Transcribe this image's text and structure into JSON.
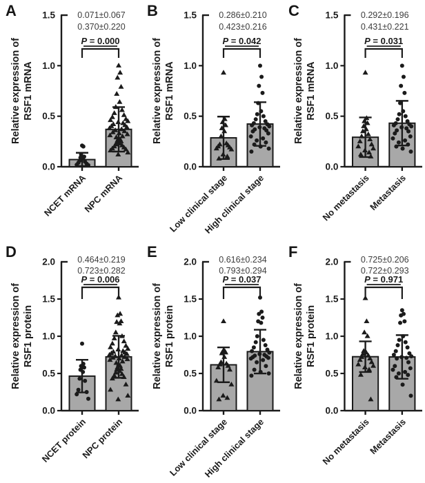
{
  "figure": {
    "background": "#ffffff",
    "bar_fill": "#a8a8a8",
    "ink": "#1b1b1b",
    "stats_text_color": "#3d3d3d"
  },
  "chart_data": [
    {
      "type": "bar",
      "panel": "A",
      "title": "",
      "ylabel": [
        "Relative expression of",
        "RSF1 mRNA"
      ],
      "ylim": [
        0,
        1.5
      ],
      "yticks": [
        "0.0",
        "0.5",
        "1.0",
        "1.5"
      ],
      "stats_lines": [
        "0.071±0.067",
        "0.370±0.220"
      ],
      "p_label": "P = 0.000",
      "categories": [
        "NCET mRNA",
        "NPC mRNA"
      ],
      "bar_means": [
        0.071,
        0.37
      ],
      "bar_sds": [
        0.067,
        0.22
      ],
      "markers": [
        "circle",
        "triangle"
      ],
      "points": [
        [
          0.21,
          0.2,
          0.12,
          0.1,
          0.09,
          0.08,
          0.06,
          0.05,
          0.04,
          0.03,
          0.02,
          0.015
        ],
        [
          1.0,
          0.93,
          0.88,
          0.79,
          0.72,
          0.64,
          0.59,
          0.56,
          0.53,
          0.51,
          0.49,
          0.47,
          0.46,
          0.45,
          0.44,
          0.43,
          0.42,
          0.41,
          0.4,
          0.39,
          0.38,
          0.37,
          0.36,
          0.35,
          0.34,
          0.33,
          0.32,
          0.31,
          0.3,
          0.29,
          0.28,
          0.27,
          0.26,
          0.25,
          0.24,
          0.23,
          0.22,
          0.21,
          0.2,
          0.19,
          0.18,
          0.17,
          0.16,
          0.14,
          0.12
        ]
      ]
    },
    {
      "type": "bar",
      "panel": "B",
      "title": "",
      "ylabel": [
        "Relative expression of",
        "RSF1 mRNA"
      ],
      "ylim": [
        0,
        1.5
      ],
      "yticks": [
        "0.0",
        "0.5",
        "1.0",
        "1.5"
      ],
      "stats_lines": [
        "0.286±0.210",
        "0.423±0.216"
      ],
      "p_label": "P = 0.042",
      "categories": [
        "Low clinical stage",
        "High clinical stage"
      ],
      "bar_means": [
        0.286,
        0.423
      ],
      "bar_sds": [
        0.21,
        0.216
      ],
      "markers": [
        "triangle",
        "circle"
      ],
      "points": [
        [
          0.93,
          0.47,
          0.44,
          0.41,
          0.38,
          0.35,
          0.3,
          0.23,
          0.22,
          0.21,
          0.2,
          0.19,
          0.18,
          0.17,
          0.12,
          0.1,
          0.08
        ],
        [
          1.0,
          0.89,
          0.8,
          0.73,
          0.63,
          0.55,
          0.52,
          0.5,
          0.47,
          0.45,
          0.43,
          0.42,
          0.41,
          0.4,
          0.39,
          0.38,
          0.37,
          0.36,
          0.35,
          0.33,
          0.3,
          0.28,
          0.26,
          0.24,
          0.22,
          0.2,
          0.18,
          0.15
        ]
      ]
    },
    {
      "type": "bar",
      "panel": "C",
      "title": "",
      "ylabel": [
        "Relative expression of",
        "RSF1 mRNA"
      ],
      "ylim": [
        0,
        1.5
      ],
      "yticks": [
        "0.0",
        "0.5",
        "1.0",
        "1.5"
      ],
      "stats_lines": [
        "0.292±0.196",
        "0.431±0.221"
      ],
      "p_label": "P = 0.031",
      "categories": [
        "No metastasis",
        "Metastasis"
      ],
      "bar_means": [
        0.292,
        0.431
      ],
      "bar_sds": [
        0.196,
        0.221
      ],
      "markers": [
        "triangle",
        "circle"
      ],
      "points": [
        [
          0.93,
          0.48,
          0.45,
          0.43,
          0.4,
          0.37,
          0.35,
          0.32,
          0.3,
          0.27,
          0.25,
          0.22,
          0.2,
          0.18,
          0.16,
          0.14,
          0.12,
          0.1
        ],
        [
          1.0,
          0.89,
          0.8,
          0.73,
          0.63,
          0.55,
          0.52,
          0.5,
          0.47,
          0.45,
          0.43,
          0.42,
          0.41,
          0.4,
          0.39,
          0.38,
          0.36,
          0.35,
          0.33,
          0.3,
          0.28,
          0.26,
          0.24,
          0.22,
          0.2,
          0.18,
          0.15
        ]
      ]
    },
    {
      "type": "bar",
      "panel": "D",
      "title": "",
      "ylabel": [
        "Relative expression of",
        "RSF1 protein"
      ],
      "ylim": [
        0,
        2.0
      ],
      "yticks": [
        "0.0",
        "0.5",
        "1.0",
        "1.5",
        "2.0"
      ],
      "stats_lines": [
        "0.464±0.219",
        "0.723±0.282"
      ],
      "p_label": "P = 0.006",
      "categories": [
        "NCET protein",
        "NPC protein"
      ],
      "bar_means": [
        0.464,
        0.723
      ],
      "bar_sds": [
        0.219,
        0.282
      ],
      "markers": [
        "circle",
        "triangle"
      ],
      "points": [
        [
          0.9,
          0.63,
          0.6,
          0.58,
          0.55,
          0.52,
          0.43,
          0.4,
          0.28,
          0.25,
          0.22,
          0.16
        ],
        [
          1.52,
          1.3,
          1.28,
          1.2,
          1.19,
          1.17,
          1.05,
          1.0,
          0.97,
          0.93,
          0.9,
          0.87,
          0.85,
          0.83,
          0.82,
          0.8,
          0.79,
          0.78,
          0.77,
          0.76,
          0.75,
          0.74,
          0.73,
          0.72,
          0.71,
          0.7,
          0.69,
          0.68,
          0.66,
          0.64,
          0.62,
          0.6,
          0.58,
          0.56,
          0.55,
          0.53,
          0.51,
          0.49,
          0.47,
          0.45,
          0.43,
          0.35,
          0.28,
          0.2,
          0.15
        ]
      ]
    },
    {
      "type": "bar",
      "panel": "E",
      "title": "",
      "ylabel": [
        "Relative expression of",
        "RSF1 protein"
      ],
      "ylim": [
        0,
        2.0
      ],
      "yticks": [
        "0.0",
        "0.5",
        "1.0",
        "1.5",
        "2.0"
      ],
      "stats_lines": [
        "0.616±0.234",
        "0.793±0.294"
      ],
      "p_label": "P = 0.037",
      "categories": [
        "Low clinical stage",
        "High clinical stage"
      ],
      "bar_means": [
        0.616,
        0.793
      ],
      "bar_sds": [
        0.234,
        0.294
      ],
      "markers": [
        "triangle",
        "circle"
      ],
      "points": [
        [
          1.2,
          0.8,
          0.79,
          0.78,
          0.77,
          0.72,
          0.65,
          0.63,
          0.62,
          0.6,
          0.58,
          0.55,
          0.4,
          0.35,
          0.2,
          0.17,
          0.15
        ],
        [
          1.52,
          1.33,
          1.3,
          1.25,
          1.2,
          1.18,
          1.0,
          0.95,
          0.92,
          0.88,
          0.85,
          0.82,
          0.8,
          0.78,
          0.76,
          0.75,
          0.74,
          0.73,
          0.72,
          0.71,
          0.7,
          0.68,
          0.65,
          0.6,
          0.55,
          0.52,
          0.5,
          0.47
        ]
      ]
    },
    {
      "type": "bar",
      "panel": "F",
      "title": "",
      "ylabel": [
        "Relative expression of",
        "RSF1 protein"
      ],
      "ylim": [
        0,
        2.0
      ],
      "yticks": [
        "0.0",
        "0.5",
        "1.0",
        "1.5",
        "2.0"
      ],
      "stats_lines": [
        "0.725±0.206",
        "0.722±0.293"
      ],
      "p_label": "P = 0.971",
      "categories": [
        "No metastasis",
        "Metastasis"
      ],
      "bar_means": [
        0.725,
        0.722
      ],
      "bar_sds": [
        0.206,
        0.293
      ],
      "markers": [
        "triangle",
        "circle"
      ],
      "points": [
        [
          1.51,
          1.2,
          1.05,
          1.0,
          0.8,
          0.78,
          0.76,
          0.74,
          0.72,
          0.7,
          0.68,
          0.65,
          0.62,
          0.6,
          0.58,
          0.55,
          0.48,
          0.15
        ],
        [
          1.35,
          1.3,
          1.28,
          1.2,
          1.18,
          1.0,
          0.95,
          0.92,
          0.88,
          0.85,
          0.8,
          0.77,
          0.75,
          0.73,
          0.72,
          0.71,
          0.7,
          0.65,
          0.6,
          0.57,
          0.55,
          0.52,
          0.5,
          0.48,
          0.45,
          0.35,
          0.2
        ]
      ]
    }
  ]
}
